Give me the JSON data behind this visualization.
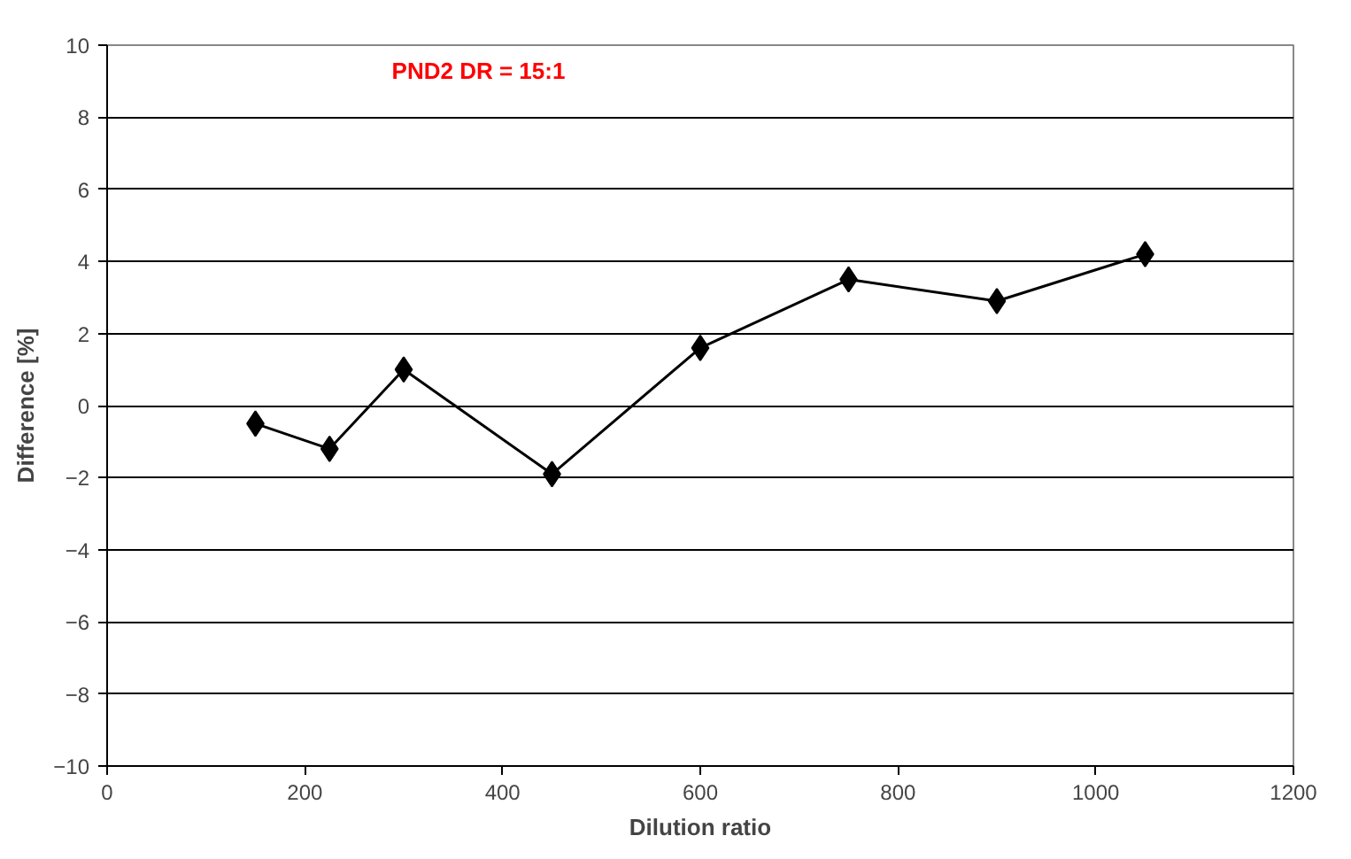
{
  "chart_data": {
    "type": "line",
    "title": "PND2 DR = 15:1",
    "xlabel": "Dilution ratio",
    "ylabel": "Difference [%]",
    "x": [
      150,
      225,
      300,
      450,
      600,
      750,
      900,
      1050
    ],
    "series": [
      {
        "color": "#000000",
        "values": [
          -0.5,
          -1.2,
          1.0,
          -1.9,
          1.6,
          3.5,
          2.9,
          4.2
        ]
      }
    ],
    "xlim": [
      0,
      1200
    ],
    "xticks": [
      0,
      200,
      400,
      600,
      800,
      1000,
      1200
    ],
    "ylim": [
      -10,
      10
    ],
    "yticks": [
      -10,
      -8,
      -6,
      -4,
      -2,
      0,
      2,
      4,
      6,
      8,
      10
    ],
    "grid": "y",
    "marker": "diamond",
    "line_style": "solid"
  }
}
